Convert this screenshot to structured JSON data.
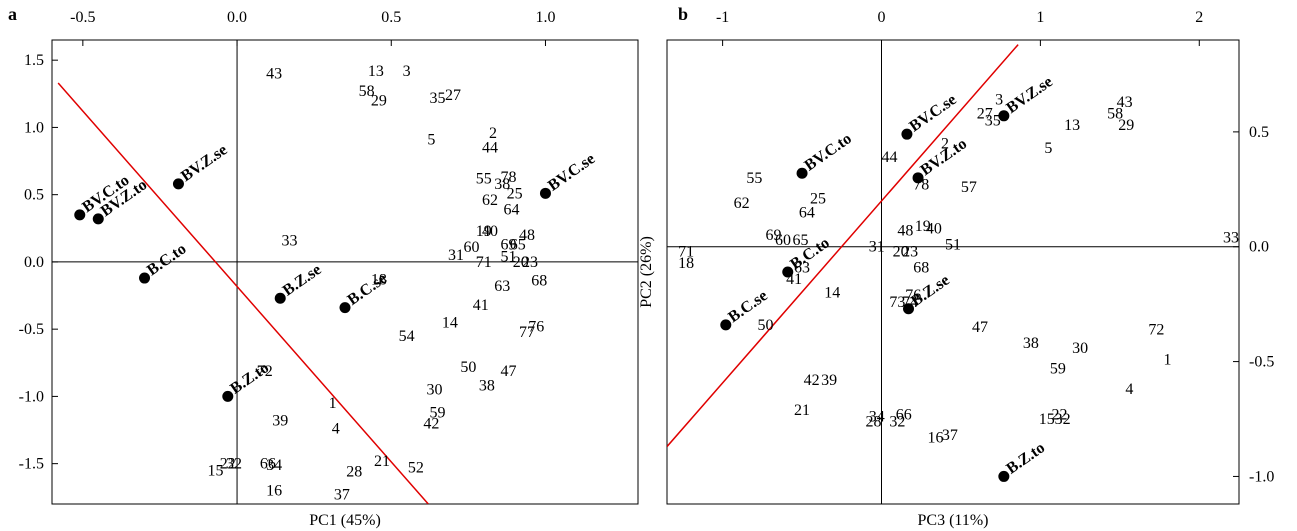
{
  "colors": {
    "regression_line": "#e00000",
    "frame": "#000000",
    "marker": "#000000"
  },
  "chart_data": [
    {
      "type": "scatter",
      "panel_label": "a",
      "xlabel": "PC1 (45%)",
      "ylabel": "",
      "xlim": [
        -0.6,
        1.3
      ],
      "ylim": [
        -1.8,
        1.65
      ],
      "xticks": [
        -0.5,
        0.0,
        0.5,
        1.0
      ],
      "xtick_labels": [
        "-0.5",
        "0.0",
        "0.5",
        "1.0"
      ],
      "yticks": [
        1.5,
        1.0,
        0.5,
        0.0,
        -0.5,
        -1.0,
        -1.5
      ],
      "ytick_labels": [
        "1.5",
        "1.0",
        "0.5",
        "0.0",
        "-0.5",
        "-1.0",
        "-1.5"
      ],
      "x_axis_position": "top",
      "y_axis_position": "left",
      "reference_lines": {
        "x": 0,
        "y": 0
      },
      "regression_line": [
        [
          -0.58,
          1.33
        ],
        [
          0.62,
          -1.8
        ]
      ],
      "loadings": [
        {
          "label": "BV.C.to",
          "x": -0.51,
          "y": 0.35
        },
        {
          "label": "BV.Z.to",
          "x": -0.45,
          "y": 0.32
        },
        {
          "label": "BV.Z.se",
          "x": -0.19,
          "y": 0.58
        },
        {
          "label": "BV.C.se",
          "x": 1.0,
          "y": 0.51
        },
        {
          "label": "B.C.to",
          "x": -0.3,
          "y": -0.12
        },
        {
          "label": "B.Z.se",
          "x": 0.14,
          "y": -0.27
        },
        {
          "label": "B.C.se",
          "x": 0.35,
          "y": -0.34
        },
        {
          "label": "B.Z.to",
          "x": -0.03,
          "y": -1.0
        }
      ],
      "scores": [
        {
          "label": "43",
          "x": 0.12,
          "y": 1.4
        },
        {
          "label": "13",
          "x": 0.45,
          "y": 1.42
        },
        {
          "label": "3",
          "x": 0.55,
          "y": 1.42
        },
        {
          "label": "58",
          "x": 0.42,
          "y": 1.27
        },
        {
          "label": "29",
          "x": 0.46,
          "y": 1.2
        },
        {
          "label": "35",
          "x": 0.65,
          "y": 1.22
        },
        {
          "label": "27",
          "x": 0.7,
          "y": 1.24
        },
        {
          "label": "5",
          "x": 0.63,
          "y": 0.91
        },
        {
          "label": "2",
          "x": 0.83,
          "y": 0.96
        },
        {
          "label": "44",
          "x": 0.82,
          "y": 0.85
        },
        {
          "label": "55",
          "x": 0.8,
          "y": 0.62
        },
        {
          "label": "78",
          "x": 0.88,
          "y": 0.63
        },
        {
          "label": "38",
          "x": 0.86,
          "y": 0.58
        },
        {
          "label": "25",
          "x": 0.9,
          "y": 0.51
        },
        {
          "label": "62",
          "x": 0.82,
          "y": 0.46
        },
        {
          "label": "64",
          "x": 0.89,
          "y": 0.39
        },
        {
          "label": "19",
          "x": 0.8,
          "y": 0.23
        },
        {
          "label": "40",
          "x": 0.82,
          "y": 0.23
        },
        {
          "label": "48",
          "x": 0.94,
          "y": 0.2
        },
        {
          "label": "60",
          "x": 0.76,
          "y": 0.11
        },
        {
          "label": "69",
          "x": 0.88,
          "y": 0.13
        },
        {
          "label": "65",
          "x": 0.91,
          "y": 0.13
        },
        {
          "label": "31",
          "x": 0.71,
          "y": 0.05
        },
        {
          "label": "71",
          "x": 0.8,
          "y": 0.0
        },
        {
          "label": "51",
          "x": 0.88,
          "y": 0.04
        },
        {
          "label": "20",
          "x": 0.92,
          "y": 0.0
        },
        {
          "label": "23",
          "x": 0.95,
          "y": 0.0
        },
        {
          "label": "68",
          "x": 0.98,
          "y": -0.14
        },
        {
          "label": "33",
          "x": 0.17,
          "y": 0.16
        },
        {
          "label": "18",
          "x": 0.46,
          "y": -0.13
        },
        {
          "label": "63",
          "x": 0.86,
          "y": -0.18
        },
        {
          "label": "41",
          "x": 0.79,
          "y": -0.32
        },
        {
          "label": "14",
          "x": 0.69,
          "y": -0.45
        },
        {
          "label": "76",
          "x": 0.97,
          "y": -0.48
        },
        {
          "label": "77",
          "x": 0.94,
          "y": -0.52
        },
        {
          "label": "54",
          "x": 0.55,
          "y": -0.55
        },
        {
          "label": "50",
          "x": 0.75,
          "y": -0.78
        },
        {
          "label": "47",
          "x": 0.88,
          "y": -0.81
        },
        {
          "label": "38",
          "x": 0.81,
          "y": -0.92
        },
        {
          "label": "30",
          "x": 0.64,
          "y": -0.95
        },
        {
          "label": "59",
          "x": 0.65,
          "y": -1.12
        },
        {
          "label": "42",
          "x": 0.63,
          "y": -1.2
        },
        {
          "label": "72",
          "x": 0.09,
          "y": -0.81
        },
        {
          "label": "1",
          "x": 0.31,
          "y": -1.05
        },
        {
          "label": "4",
          "x": 0.32,
          "y": -1.24
        },
        {
          "label": "39",
          "x": 0.14,
          "y": -1.18
        },
        {
          "label": "21",
          "x": 0.47,
          "y": -1.48
        },
        {
          "label": "52",
          "x": 0.58,
          "y": -1.53
        },
        {
          "label": "28",
          "x": 0.38,
          "y": -1.56
        },
        {
          "label": "37",
          "x": 0.34,
          "y": -1.73
        },
        {
          "label": "66",
          "x": 0.1,
          "y": -1.5
        },
        {
          "label": "34",
          "x": 0.12,
          "y": -1.51
        },
        {
          "label": "16",
          "x": 0.12,
          "y": -1.7
        },
        {
          "label": "22",
          "x": -0.03,
          "y": -1.5
        },
        {
          "label": "32",
          "x": -0.01,
          "y": -1.5
        },
        {
          "label": "15",
          "x": -0.07,
          "y": -1.55
        }
      ]
    },
    {
      "type": "scatter",
      "panel_label": "b",
      "xlabel": "PC3 (11%)",
      "ylabel": "PC2 (26%)",
      "xlim": [
        -1.35,
        2.25
      ],
      "ylim": [
        -1.12,
        0.9
      ],
      "xticks": [
        -1,
        0,
        1,
        2
      ],
      "xtick_labels": [
        "-1",
        "0",
        "1",
        "2"
      ],
      "yticks": [
        0.5,
        0.0,
        -0.5,
        -1.0
      ],
      "ytick_labels": [
        "0.5",
        "0.0",
        "-0.5",
        "-1.0"
      ],
      "x_axis_position": "top",
      "y_axis_position": "right",
      "reference_lines": {
        "x": 0,
        "y": 0
      },
      "regression_line": [
        [
          -1.35,
          -0.87
        ],
        [
          0.86,
          0.88
        ]
      ],
      "loadings": [
        {
          "label": "BV.C.se",
          "x": 0.16,
          "y": 0.49
        },
        {
          "label": "BV.Z.se",
          "x": 0.77,
          "y": 0.57
        },
        {
          "label": "BV.C.to",
          "x": -0.5,
          "y": 0.32
        },
        {
          "label": "BV.Z.to",
          "x": 0.23,
          "y": 0.3
        },
        {
          "label": "B.C.to",
          "x": -0.59,
          "y": -0.11
        },
        {
          "label": "B.C.se",
          "x": -0.98,
          "y": -0.34
        },
        {
          "label": "B.Z.se",
          "x": 0.17,
          "y": -0.27
        },
        {
          "label": "B.Z.to",
          "x": 0.77,
          "y": -1.0
        }
      ],
      "scores": [
        {
          "label": "43",
          "x": 1.53,
          "y": 0.63
        },
        {
          "label": "13",
          "x": 1.2,
          "y": 0.53
        },
        {
          "label": "58",
          "x": 1.47,
          "y": 0.58
        },
        {
          "label": "29",
          "x": 1.54,
          "y": 0.53
        },
        {
          "label": "3",
          "x": 0.74,
          "y": 0.64
        },
        {
          "label": "27",
          "x": 0.65,
          "y": 0.58
        },
        {
          "label": "35",
          "x": 0.7,
          "y": 0.55
        },
        {
          "label": "5",
          "x": 1.05,
          "y": 0.43
        },
        {
          "label": "2",
          "x": 0.4,
          "y": 0.45
        },
        {
          "label": "44",
          "x": 0.05,
          "y": 0.39
        },
        {
          "label": "78",
          "x": 0.25,
          "y": 0.27
        },
        {
          "label": "57",
          "x": 0.55,
          "y": 0.26
        },
        {
          "label": "55",
          "x": -0.8,
          "y": 0.3
        },
        {
          "label": "62",
          "x": -0.88,
          "y": 0.19
        },
        {
          "label": "25",
          "x": -0.4,
          "y": 0.21
        },
        {
          "label": "64",
          "x": -0.47,
          "y": 0.15
        },
        {
          "label": "69",
          "x": -0.68,
          "y": 0.05
        },
        {
          "label": "60",
          "x": -0.62,
          "y": 0.03
        },
        {
          "label": "65",
          "x": -0.51,
          "y": 0.03
        },
        {
          "label": "48",
          "x": 0.15,
          "y": 0.07
        },
        {
          "label": "19",
          "x": 0.26,
          "y": 0.09
        },
        {
          "label": "40",
          "x": 0.33,
          "y": 0.08
        },
        {
          "label": "31",
          "x": -0.03,
          "y": 0.0
        },
        {
          "label": "20",
          "x": 0.12,
          "y": -0.02
        },
        {
          "label": "23",
          "x": 0.18,
          "y": -0.02
        },
        {
          "label": "51",
          "x": 0.45,
          "y": 0.01
        },
        {
          "label": "33",
          "x": 2.2,
          "y": 0.04
        },
        {
          "label": "71",
          "x": -1.23,
          "y": -0.02
        },
        {
          "label": "18",
          "x": -1.23,
          "y": -0.07
        },
        {
          "label": "68",
          "x": 0.25,
          "y": -0.09
        },
        {
          "label": "63",
          "x": -0.5,
          "y": -0.09
        },
        {
          "label": "41",
          "x": -0.55,
          "y": -0.14
        },
        {
          "label": "14",
          "x": -0.31,
          "y": -0.2
        },
        {
          "label": "76",
          "x": 0.2,
          "y": -0.21
        },
        {
          "label": "73",
          "x": 0.1,
          "y": -0.24
        },
        {
          "label": "74",
          "x": 0.18,
          "y": -0.24
        },
        {
          "label": "47",
          "x": 0.62,
          "y": -0.35
        },
        {
          "label": "50",
          "x": -0.73,
          "y": -0.34
        },
        {
          "label": "38",
          "x": 0.94,
          "y": -0.42
        },
        {
          "label": "30",
          "x": 1.25,
          "y": -0.44
        },
        {
          "label": "72",
          "x": 1.73,
          "y": -0.36
        },
        {
          "label": "1",
          "x": 1.8,
          "y": -0.49
        },
        {
          "label": "59",
          "x": 1.11,
          "y": -0.53
        },
        {
          "label": "4",
          "x": 1.56,
          "y": -0.62
        },
        {
          "label": "42",
          "x": -0.44,
          "y": -0.58
        },
        {
          "label": "39",
          "x": -0.33,
          "y": -0.58
        },
        {
          "label": "21",
          "x": -0.5,
          "y": -0.71
        },
        {
          "label": "34",
          "x": -0.03,
          "y": -0.74
        },
        {
          "label": "66",
          "x": 0.14,
          "y": -0.73
        },
        {
          "label": "28",
          "x": -0.05,
          "y": -0.76
        },
        {
          "label": "32",
          "x": 0.1,
          "y": -0.76
        },
        {
          "label": "16",
          "x": 0.34,
          "y": -0.83
        },
        {
          "label": "37",
          "x": 0.43,
          "y": -0.82
        },
        {
          "label": "15",
          "x": 1.04,
          "y": -0.75
        },
        {
          "label": "22",
          "x": 1.12,
          "y": -0.73
        },
        {
          "label": "32",
          "x": 1.14,
          "y": -0.75
        }
      ]
    }
  ]
}
